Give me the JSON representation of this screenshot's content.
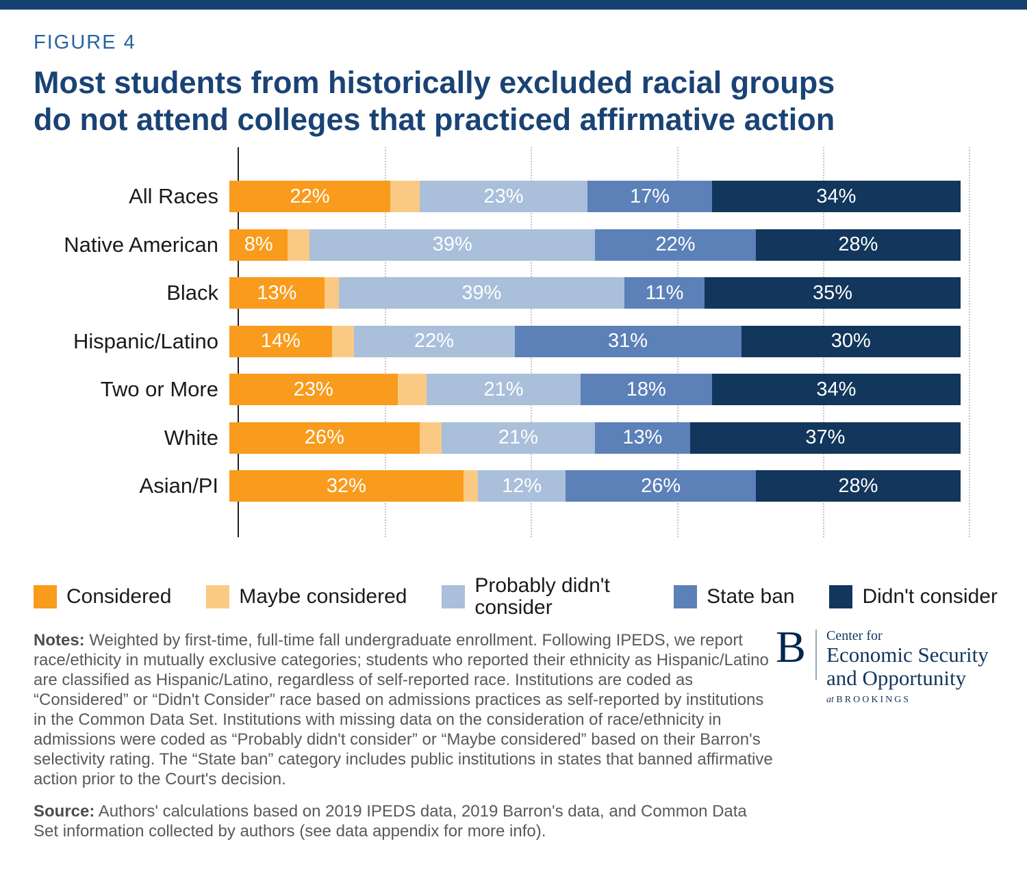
{
  "page": {
    "figure_label": "FIGURE 4",
    "title_line1": "Most students from historically excluded racial groups",
    "title_line2": "do not attend colleges that practiced affirmative action"
  },
  "chart_data": {
    "type": "bar",
    "stacked": true,
    "orientation": "horizontal",
    "title": "Most students from historically excluded racial groups do not attend colleges that practiced affirmative action",
    "value_unit": "%",
    "value_label_color": "#FFFFFF",
    "x_axis": {
      "min": 0,
      "max": 100,
      "gridlines_percent": [
        20,
        40,
        60,
        80,
        100
      ],
      "grid_style": "dotted"
    },
    "categories": [
      "All Races",
      "Native American",
      "Black",
      "Hispanic/Latino",
      "Two or More",
      "White",
      "Asian/PI"
    ],
    "series": [
      {
        "name": "Considered",
        "color": "#F99B1C",
        "show_value_labels": true,
        "values": [
          22,
          8,
          13,
          14,
          23,
          26,
          32
        ]
      },
      {
        "name": "Maybe considered",
        "color": "#FACA85",
        "show_value_labels": false,
        "values": [
          4,
          3,
          2,
          3,
          4,
          3,
          2
        ]
      },
      {
        "name": "Probably didn't consider",
        "color": "#A9BFDA",
        "show_value_labels": true,
        "values": [
          23,
          39,
          39,
          22,
          21,
          21,
          12
        ]
      },
      {
        "name": "State ban",
        "color": "#5C80B8",
        "show_value_labels": true,
        "values": [
          17,
          22,
          11,
          31,
          18,
          13,
          26
        ]
      },
      {
        "name": "Didn't consider",
        "color": "#12365C",
        "show_value_labels": true,
        "values": [
          34,
          28,
          35,
          30,
          34,
          37,
          28
        ]
      }
    ],
    "legend_position": "bottom"
  },
  "legend": {
    "items": [
      {
        "label": "Considered",
        "color": "#F99B1C",
        "wrap": false
      },
      {
        "label": "Maybe considered",
        "color": "#FACA85",
        "wrap": false
      },
      {
        "label": "Probably didn't consider",
        "color": "#A9BFDA",
        "wrap": true
      },
      {
        "label": "State ban",
        "color": "#5C80B8",
        "wrap": false
      },
      {
        "label": "Didn't consider",
        "color": "#12365C",
        "wrap": false
      }
    ]
  },
  "notes": {
    "label": "Notes:",
    "text": " Weighted by first-time, full-time fall undergraduate enrollment. Following IPEDS, we report race/ethicity in mutually exclusive categories; students who reported their ethnicity as Hispanic/Latino are classified as Hispanic/Latino, regardless of self-reported race. Institutions are coded as “Considered” or “Didn't Consider” race based on admissions practices as self-reported by institutions in the Common Data Set. Institutions with missing data on the consideration of race/ethnicity in admissions were coded as “Probably didn't consider” or “Maybe considered” based on their Barron's selectivity rating. The “State ban” category includes public institutions in states that banned affirmative action prior to the Court's decision."
  },
  "source": {
    "label": "Source:",
    "text": " Authors' calculations based on 2019 IPEDS data, 2019 Barron's data, and Common Data Set information collected by authors (see data appendix for more info)."
  },
  "logo": {
    "monogram": "B",
    "line1": "Center for",
    "line2": "Economic Security",
    "line3": "and Opportunity",
    "line4_prefix": "at",
    "line4": "BROOKINGS"
  }
}
